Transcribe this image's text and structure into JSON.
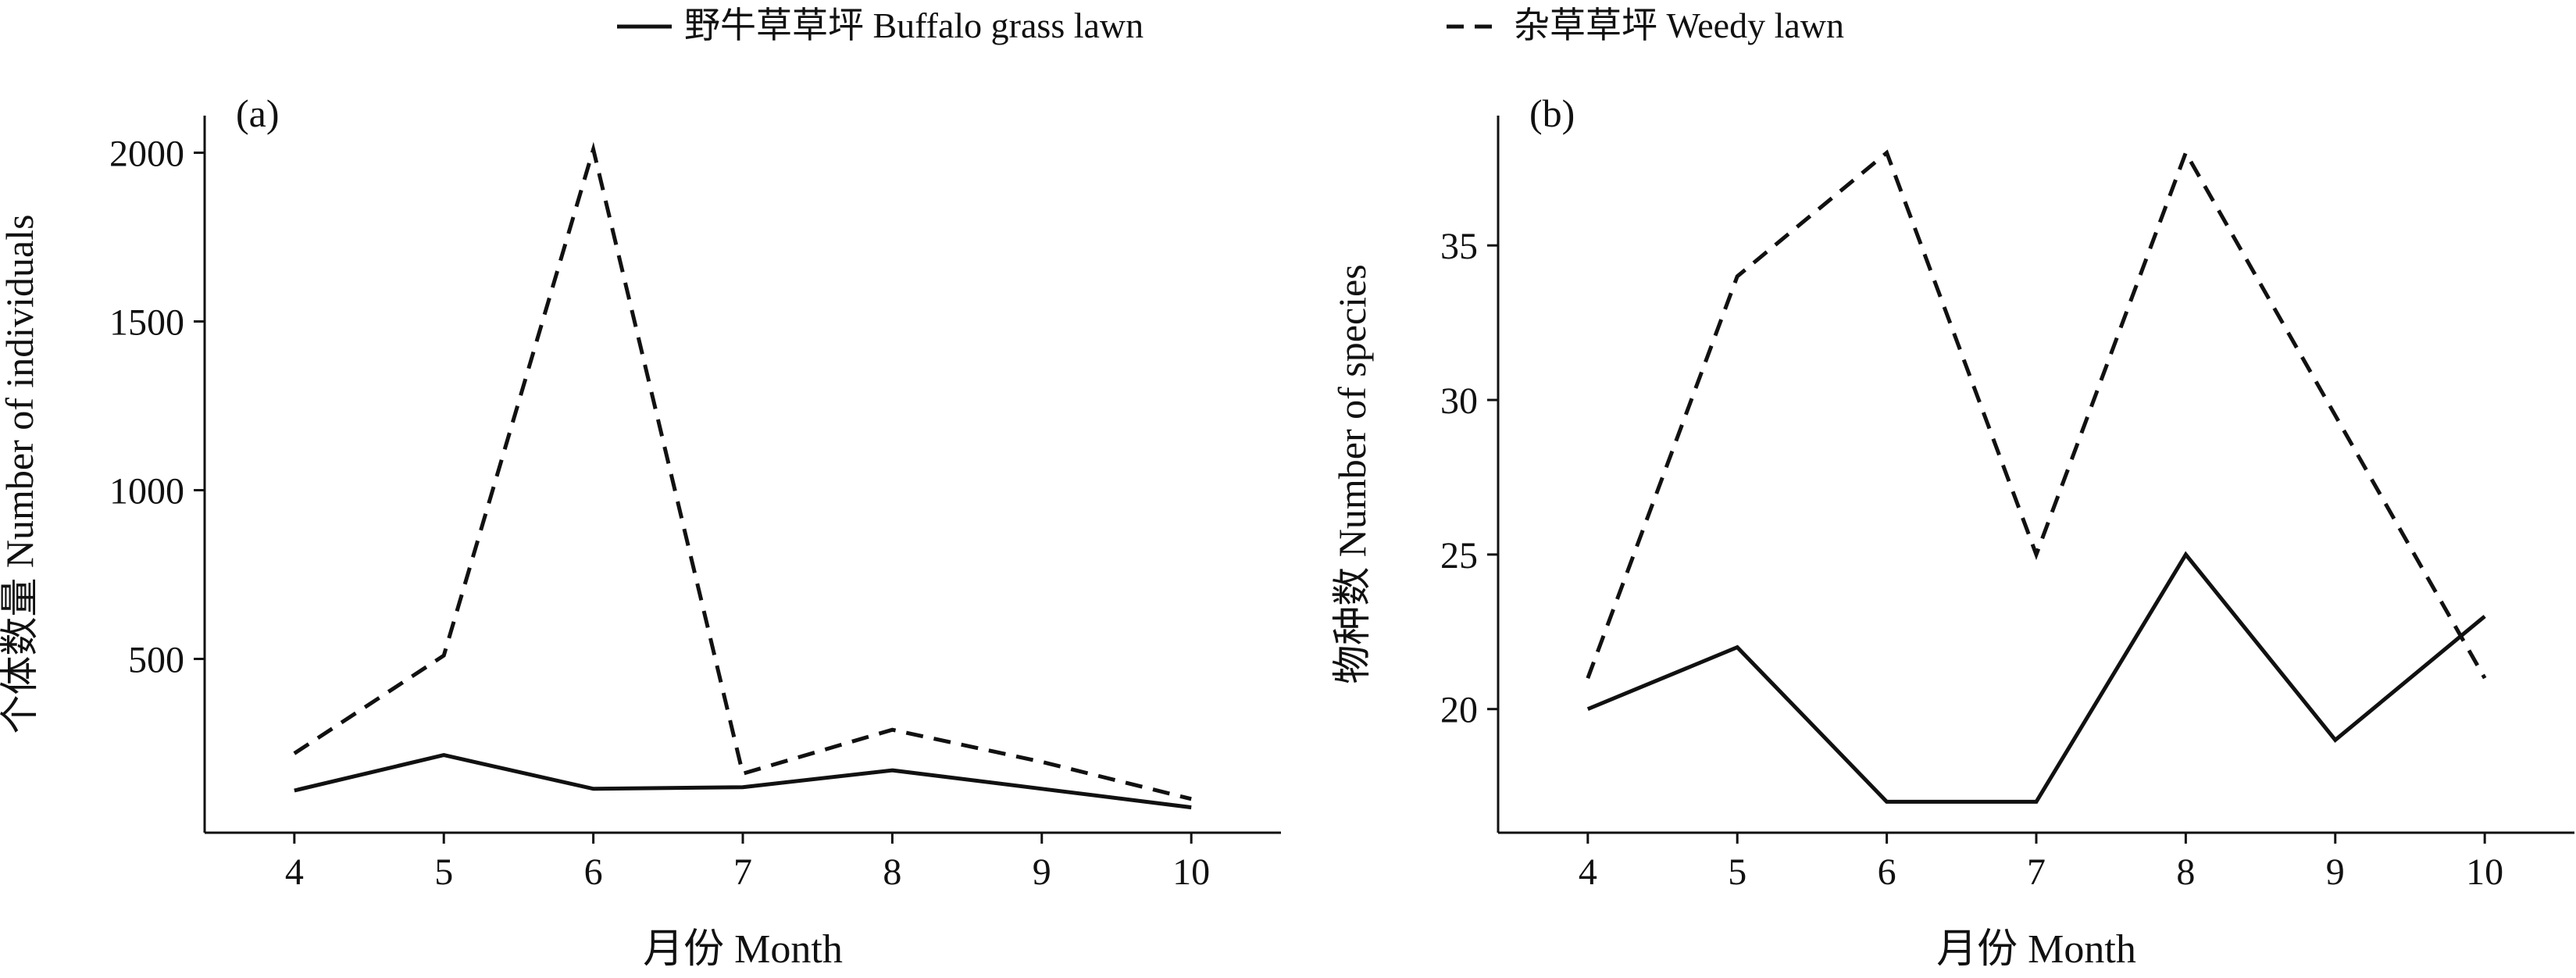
{
  "legend": {
    "items": [
      {
        "label": "野牛草草坪 Buffalo grass lawn",
        "style": "solid"
      },
      {
        "label": "杂草草坪 Weedy lawn",
        "style": "dashed"
      }
    ],
    "placement": "top-center"
  },
  "colors": {
    "line": "#111111",
    "background": "#ffffff"
  },
  "chart_data": [
    {
      "type": "line",
      "panel_label": "(a)",
      "xlabel": "月份 Month",
      "ylabel": "个体数量 Number of individuals",
      "x": [
        4,
        5,
        6,
        7,
        8,
        9,
        10
      ],
      "x_ticks": [
        "4",
        "5",
        "6",
        "7",
        "8",
        "9",
        "10"
      ],
      "xlim": [
        3.4,
        10.6
      ],
      "ylim": [
        -15,
        2110
      ],
      "y_ticks": [
        500,
        1000,
        1500,
        2000
      ],
      "grid": false,
      "series": [
        {
          "name": "野牛草草坪 Buffalo grass lawn",
          "style": "solid",
          "values": [
            110,
            215,
            115,
            120,
            170,
            115,
            60
          ]
        },
        {
          "name": "杂草草坪 Weedy lawn",
          "style": "dashed",
          "values": [
            220,
            510,
            2010,
            160,
            290,
            195,
            85
          ]
        }
      ]
    },
    {
      "type": "line",
      "panel_label": "(b)",
      "xlabel": "月份 Month",
      "ylabel": "物种数 Number of species",
      "x": [
        4,
        5,
        6,
        7,
        8,
        9,
        10
      ],
      "x_ticks": [
        "4",
        "5",
        "6",
        "7",
        "8",
        "9",
        "10"
      ],
      "xlim": [
        3.4,
        10.6
      ],
      "ylim": [
        16,
        39.2
      ],
      "y_ticks": [
        20,
        25,
        30,
        35
      ],
      "grid": false,
      "series": [
        {
          "name": "野牛草草坪 Buffalo grass lawn",
          "style": "solid",
          "values": [
            20,
            22,
            17,
            17,
            25,
            19,
            23
          ]
        },
        {
          "name": "杂草草坪 Weedy lawn",
          "style": "dashed",
          "values": [
            21,
            34,
            38,
            25,
            38,
            29.5,
            21
          ]
        }
      ]
    }
  ]
}
